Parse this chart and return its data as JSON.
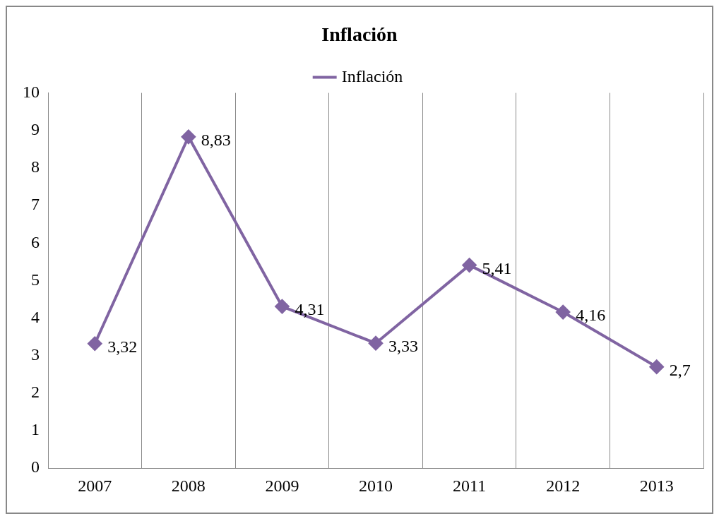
{
  "chart_data": {
    "type": "line",
    "title": "Inflación",
    "categories": [
      "2007",
      "2008",
      "2009",
      "2010",
      "2011",
      "2012",
      "2013"
    ],
    "series": [
      {
        "name": "Inflación",
        "color": "#8064a2",
        "values": [
          3.32,
          8.83,
          4.31,
          3.33,
          5.41,
          4.16,
          2.7
        ],
        "value_labels": [
          "3,32",
          "8,83",
          "4,31",
          "3,33",
          "5,41",
          "4,16",
          "2,7"
        ]
      }
    ],
    "ylim": [
      0,
      10
    ],
    "yticks": [
      0,
      1,
      2,
      3,
      4,
      5,
      6,
      7,
      8,
      9,
      10
    ],
    "grid": "x",
    "legend": "top",
    "marker": "diamond",
    "line_style": "solid"
  }
}
